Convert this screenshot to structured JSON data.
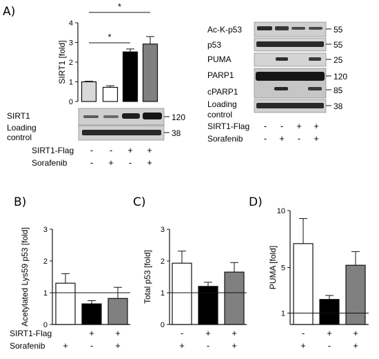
{
  "panel_labels": [
    "A)",
    "B)",
    "C)",
    "D)"
  ],
  "blot_a_left": {
    "rows": [
      {
        "label": [
          "SIRT1"
        ],
        "size": "120"
      },
      {
        "label": [
          "Loading",
          "control"
        ],
        "size": "38"
      }
    ]
  },
  "blot_a_right": {
    "rows": [
      {
        "label": [
          "Ac-K-p53"
        ],
        "size": "55"
      },
      {
        "label": [
          "p53"
        ],
        "size": "55"
      },
      {
        "label": [
          "PUMA"
        ],
        "size": "25"
      },
      {
        "label": [
          "PARP1"
        ],
        "size": "120"
      },
      {
        "label": [
          "cPARP1"
        ],
        "size": "85"
      },
      {
        "label": [
          "Loading",
          "control"
        ],
        "size": "38"
      }
    ]
  },
  "condition_rows": {
    "labels": [
      "SIRT1-Flag",
      "Sorafenib"
    ],
    "four_lane": [
      [
        "-",
        "-",
        "+",
        "+"
      ],
      [
        "-",
        "+",
        "-",
        "+"
      ]
    ],
    "three_lane": [
      [
        "-",
        "+",
        "+"
      ],
      [
        "+",
        "-",
        "+"
      ]
    ]
  },
  "colors": {
    "white_bar": "#ffffff",
    "black_bar": "#000000",
    "grey_bar": "#808080",
    "light_bar": "#d9d9d9"
  },
  "chart_data": [
    {
      "panel": "A",
      "type": "bar",
      "categories": [
        "1",
        "2",
        "3",
        "4"
      ],
      "values": [
        1.0,
        0.72,
        2.52,
        2.92
      ],
      "errors": [
        0.03,
        0.08,
        0.15,
        0.38
      ],
      "colors": [
        "#d9d9d9",
        "#ffffff",
        "#000000",
        "#808080"
      ],
      "ylabel": "SIRT1 [fold]",
      "ylim": [
        0,
        4
      ],
      "yticks": [
        "0",
        "1",
        "2",
        "3",
        "4"
      ],
      "significance": [
        {
          "from": 1,
          "to": 3,
          "label": "*"
        },
        {
          "from": 1,
          "to": 4,
          "label": "*"
        }
      ]
    },
    {
      "panel": "B",
      "type": "bar",
      "categories": [
        "1",
        "2",
        "3"
      ],
      "values": [
        1.3,
        0.65,
        0.82
      ],
      "errors": [
        0.3,
        0.1,
        0.35
      ],
      "colors": [
        "#ffffff",
        "#000000",
        "#808080"
      ],
      "ylabel": "Acetylated Lys59 p53 [fold]",
      "ylim": [
        0,
        3
      ],
      "yticks": [
        "0",
        "1",
        "2",
        "3"
      ],
      "reference_line": 1
    },
    {
      "panel": "C",
      "type": "bar",
      "categories": [
        "1",
        "2",
        "3"
      ],
      "values": [
        1.93,
        1.2,
        1.65
      ],
      "errors": [
        0.38,
        0.13,
        0.3
      ],
      "colors": [
        "#ffffff",
        "#000000",
        "#808080"
      ],
      "ylabel": "Total p53 [fold]",
      "ylim": [
        0,
        3
      ],
      "yticks": [
        "0",
        "1",
        "2",
        "3"
      ],
      "reference_line": 1
    },
    {
      "panel": "D",
      "type": "bar",
      "categories": [
        "1",
        "2",
        "3"
      ],
      "values": [
        7.1,
        2.2,
        5.2
      ],
      "errors": [
        2.2,
        0.35,
        1.2
      ],
      "colors": [
        "#ffffff",
        "#000000",
        "#808080"
      ],
      "ylabel": "PUMA [fold]",
      "ylim": [
        0,
        10
      ],
      "yticks": [
        "1",
        "5",
        "10"
      ],
      "reference_line": 1
    }
  ]
}
